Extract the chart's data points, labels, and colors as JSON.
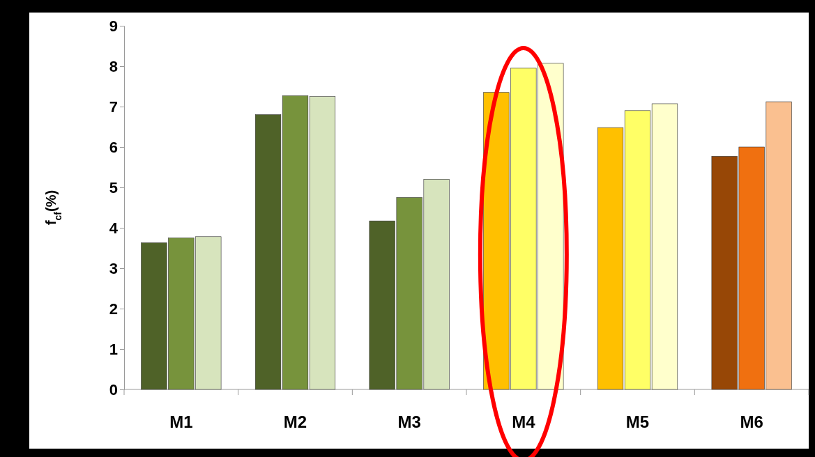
{
  "chart_data": {
    "type": "bar",
    "ylabel": "f$_{cf}$(%)",
    "categories": [
      "M1",
      "M2",
      "M3",
      "M4",
      "M5",
      "M6"
    ],
    "series": [
      {
        "colors": [
          "#4f6228",
          "#4f6228",
          "#4f6228",
          "#ffc000",
          "#ffc000",
          "#974706"
        ],
        "values": [
          3.63,
          6.8,
          4.17,
          7.35,
          6.48,
          5.77
        ]
      },
      {
        "colors": [
          "#77933c",
          "#77933c",
          "#77933c",
          "#ffff66",
          "#ffff66",
          "#f07010"
        ],
        "values": [
          3.75,
          7.27,
          4.75,
          7.95,
          6.9,
          6.0
        ]
      },
      {
        "colors": [
          "#d7e4bd",
          "#d7e4bd",
          "#d7e4bd",
          "#ffffcc",
          "#ffffcc",
          "#fac090"
        ],
        "values": [
          3.78,
          7.25,
          5.2,
          8.07,
          7.07,
          7.12
        ]
      }
    ],
    "ylim": [
      0,
      9
    ],
    "yticks": [
      0,
      1,
      2,
      3,
      4,
      5,
      6,
      7,
      8,
      9
    ],
    "grid": false
  }
}
